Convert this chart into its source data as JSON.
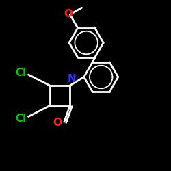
{
  "background": "#000000",
  "bond_color": "#ffffff",
  "cl_color": "#00cc00",
  "n_color": "#3333ff",
  "o_color": "#ff2200",
  "bond_width": 2.0,
  "figsize": [
    2.5,
    2.5
  ],
  "dpi": 100,
  "font_size": 11,
  "xlim": [
    -1.6,
    2.4
  ],
  "ylim": [
    -2.2,
    2.2
  ]
}
